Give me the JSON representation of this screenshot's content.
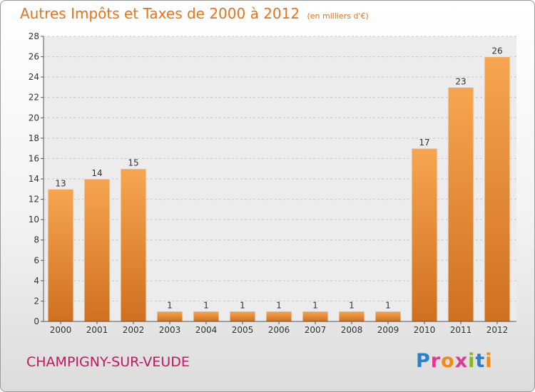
{
  "header": {
    "title": "Autres Impôts et Taxes de 2000 à 2012",
    "subtitle": "(en milliers d'€)"
  },
  "footer": {
    "commune": "CHAMPIGNY-SUR-VEUDE",
    "brand_letters": [
      "P",
      "r",
      "o",
      "x",
      "i",
      "t",
      "i"
    ],
    "brand_colors": [
      "#2a7fc9",
      "#e03a8f",
      "#f08a12",
      "#e03a8f",
      "#88b820",
      "#2a7fc9",
      "#f08a12"
    ]
  },
  "chart_data": {
    "type": "bar",
    "categories": [
      "2000",
      "2001",
      "2002",
      "2003",
      "2004",
      "2005",
      "2006",
      "2007",
      "2008",
      "2009",
      "2010",
      "2011",
      "2012"
    ],
    "values": [
      13,
      14,
      15,
      1,
      1,
      1,
      1,
      1,
      1,
      1,
      17,
      23,
      26
    ],
    "ylim": [
      0,
      28
    ],
    "yticks": [
      0,
      2,
      4,
      6,
      8,
      10,
      12,
      14,
      16,
      18,
      20,
      22,
      24,
      26,
      28
    ],
    "grid": true,
    "bar_color_top": "#f7a550",
    "bar_color_bottom": "#cf7020"
  }
}
